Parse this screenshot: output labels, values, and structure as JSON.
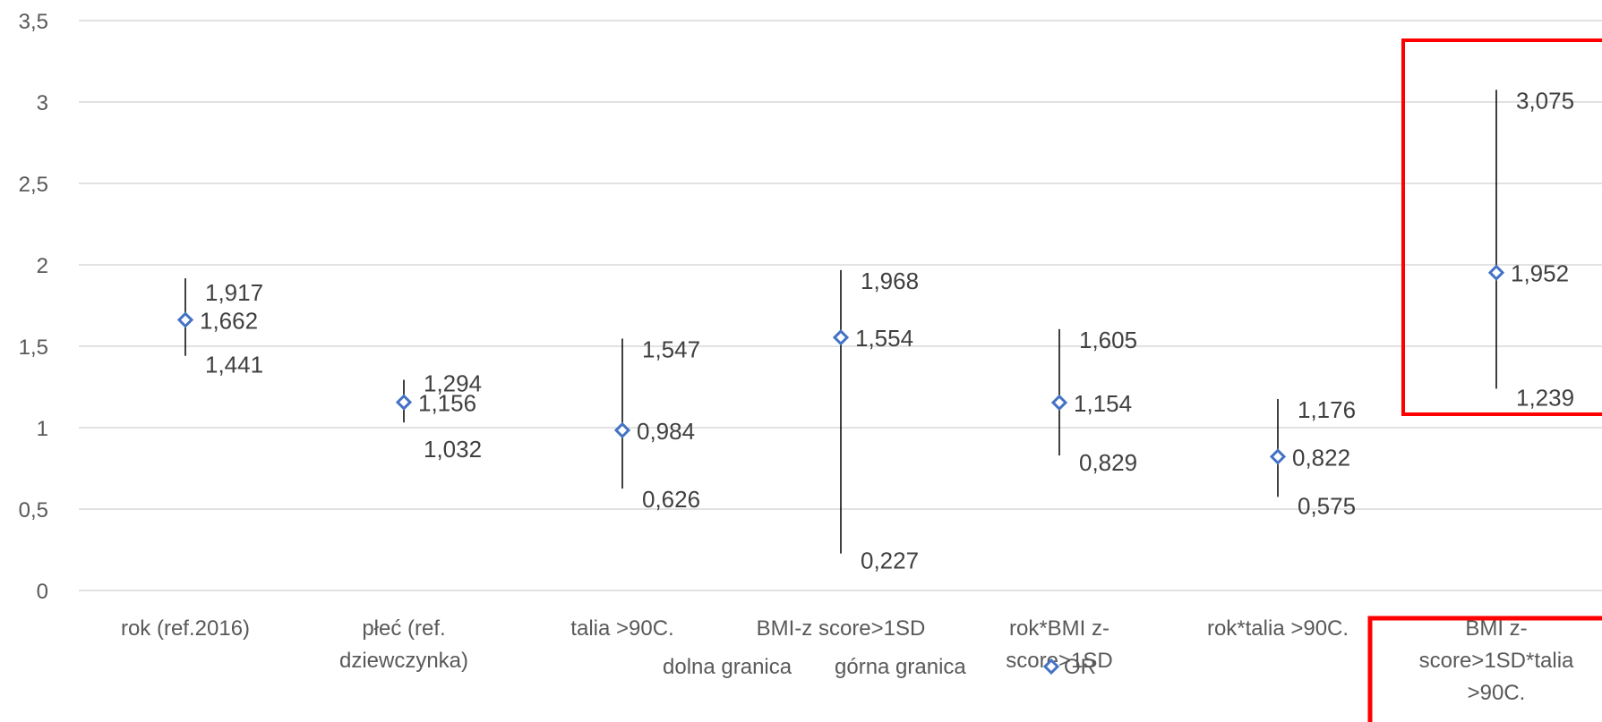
{
  "chart_data": {
    "type": "scatter",
    "title": "",
    "xlabel": "",
    "ylabel": "",
    "ylim": [
      0,
      3.5
    ],
    "yticks": [
      0,
      0.5,
      1,
      1.5,
      2,
      2.5,
      3,
      3.5
    ],
    "ytick_labels": [
      "0",
      "0,5",
      "1",
      "1,5",
      "2",
      "2,5",
      "3",
      "3,5"
    ],
    "grid": true,
    "legend_position": "bottom",
    "categories": [
      [
        "rok (ref.2016)"
      ],
      [
        "płeć (ref.",
        "dziewczynka)"
      ],
      [
        "talia >90C."
      ],
      [
        "BMI-z score>1SD"
      ],
      [
        "rok*BMI z-",
        "score>1SD"
      ],
      [
        "rok*talia >90C."
      ],
      [
        "BMI z-",
        "score>1SD*talia",
        ">90C."
      ]
    ],
    "series": [
      {
        "name": "dolna granica",
        "values": [
          1.441,
          1.032,
          0.626,
          0.227,
          0.829,
          0.575,
          1.239
        ],
        "labels": [
          "1,441",
          "1,032",
          "0,626",
          "0,227",
          "0,829",
          "0,575",
          "1,239"
        ]
      },
      {
        "name": "górna granica",
        "values": [
          1.917,
          1.294,
          1.547,
          1.968,
          1.605,
          1.176,
          3.075
        ],
        "labels": [
          "1,917",
          "1,294",
          "1,547",
          "1,968",
          "1,605",
          "1,176",
          "3,075"
        ]
      },
      {
        "name": "OR",
        "values": [
          1.662,
          1.156,
          0.984,
          1.554,
          1.154,
          0.822,
          1.952
        ],
        "labels": [
          "1,662",
          "1,156",
          "0,984",
          "1,554",
          "1,154",
          "0,822",
          "1,952"
        ]
      }
    ],
    "highlight_category_index": 6,
    "colors": {
      "marker": "#4472c4",
      "errorbar": "#000000",
      "grid": "#d9d9d9",
      "highlight": "#ff0000"
    }
  }
}
